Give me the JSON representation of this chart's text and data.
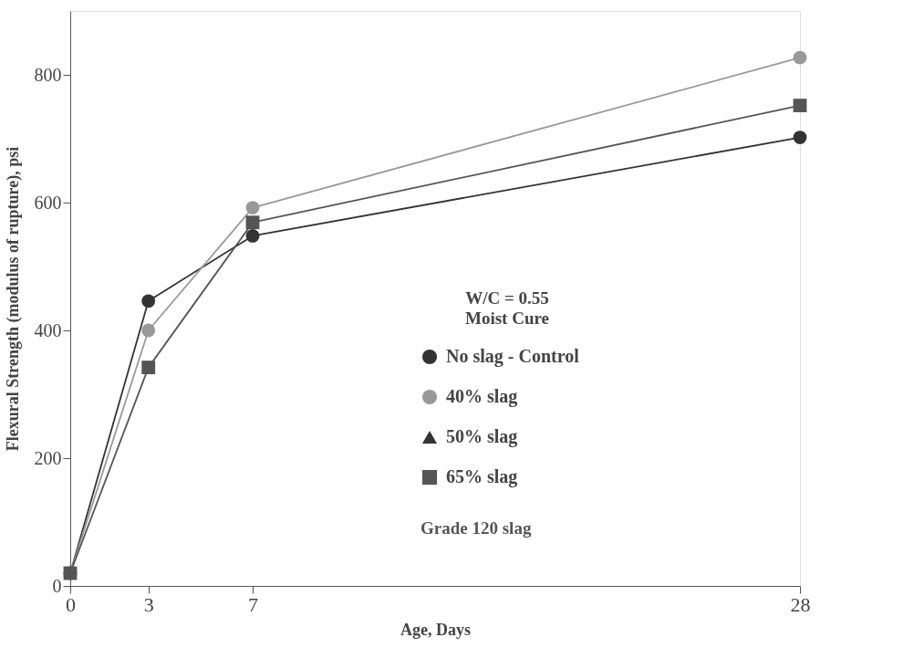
{
  "chart_data": {
    "type": "line",
    "xlabel": "Age, Days",
    "ylabel": "Flexural Strength (modulus of rupture), psi",
    "legend_title": "W/C  =  0.55\nMoist   Cure",
    "x": [
      0,
      3,
      7,
      28
    ],
    "xlim": [
      0,
      28
    ],
    "xticks": [
      0,
      3,
      7,
      28
    ],
    "ylim": [
      0,
      900
    ],
    "yticks": [
      0,
      200,
      400,
      600,
      800
    ],
    "grid": false,
    "legend": "right",
    "line_style": "solid",
    "series": [
      {
        "name": "No slag - Control",
        "color": "#333333",
        "marker": "circle",
        "values": [
          20,
          446,
          548,
          702
        ]
      },
      {
        "name": "40% slag",
        "color": "#999999",
        "marker": "circle",
        "values": [
          20,
          400,
          592,
          827
        ]
      },
      {
        "name": "50% slag",
        "color": "#333333",
        "marker": "triangle",
        "values": [
          null,
          null,
          null,
          null
        ]
      },
      {
        "name": "65% slag",
        "color": "#555555",
        "marker": "square",
        "values": [
          20,
          342,
          569,
          752
        ]
      }
    ],
    "annotations": [
      {
        "text": "Grade 120 slag"
      }
    ]
  }
}
